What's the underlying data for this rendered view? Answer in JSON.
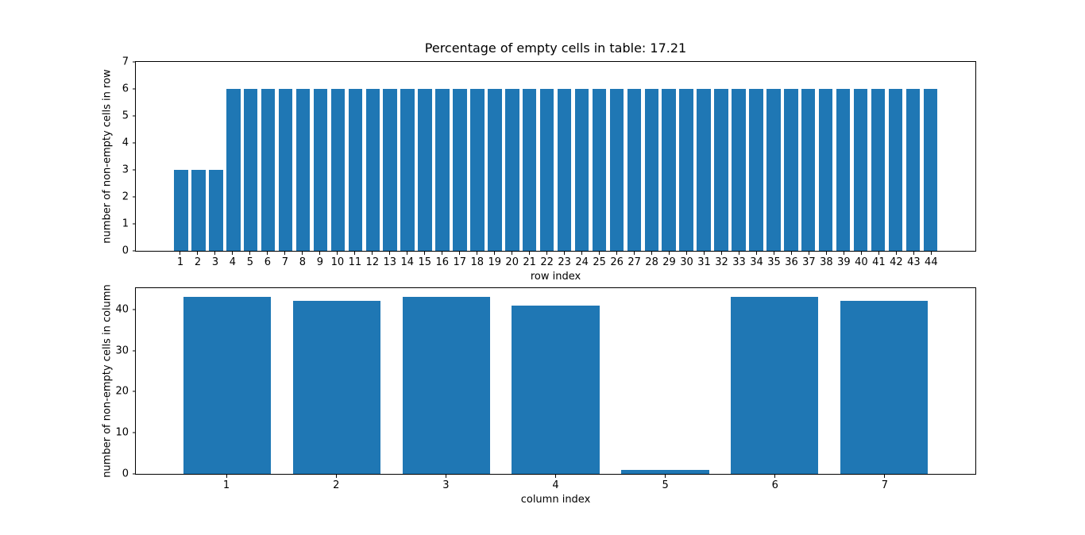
{
  "figure": {
    "background": "#ffffff",
    "bar_color": "#1f77b4"
  },
  "chart_data": [
    {
      "type": "bar",
      "title": "Percentage of empty cells in table: 17.21",
      "xlabel": "row index",
      "ylabel": "number of non-empty cells in row",
      "categories": [
        "1",
        "2",
        "3",
        "4",
        "5",
        "6",
        "7",
        "8",
        "9",
        "10",
        "11",
        "12",
        "13",
        "14",
        "15",
        "16",
        "17",
        "18",
        "19",
        "20",
        "21",
        "22",
        "23",
        "24",
        "25",
        "26",
        "27",
        "28",
        "29",
        "30",
        "31",
        "32",
        "33",
        "34",
        "35",
        "36",
        "37",
        "38",
        "39",
        "40",
        "41",
        "42",
        "43",
        "44"
      ],
      "values": [
        3,
        3,
        3,
        6,
        6,
        6,
        6,
        6,
        6,
        6,
        6,
        6,
        6,
        6,
        6,
        6,
        6,
        6,
        6,
        6,
        6,
        6,
        6,
        6,
        6,
        6,
        6,
        6,
        6,
        6,
        6,
        6,
        6,
        6,
        6,
        6,
        6,
        6,
        6,
        6,
        6,
        6,
        6,
        6
      ],
      "ylim": [
        0,
        7
      ],
      "yticks": [
        0,
        1,
        2,
        3,
        4,
        5,
        6,
        7
      ],
      "grid": false,
      "legend": null
    },
    {
      "type": "bar",
      "title": "",
      "xlabel": "column index",
      "ylabel": "number of non-empty cells in column",
      "categories": [
        "1",
        "2",
        "3",
        "4",
        "5",
        "6",
        "7"
      ],
      "values": [
        43,
        42,
        43,
        41,
        1,
        43,
        42
      ],
      "ylim": [
        0,
        45.15
      ],
      "yticks": [
        0,
        10,
        20,
        30,
        40
      ],
      "grid": false,
      "legend": null
    }
  ]
}
